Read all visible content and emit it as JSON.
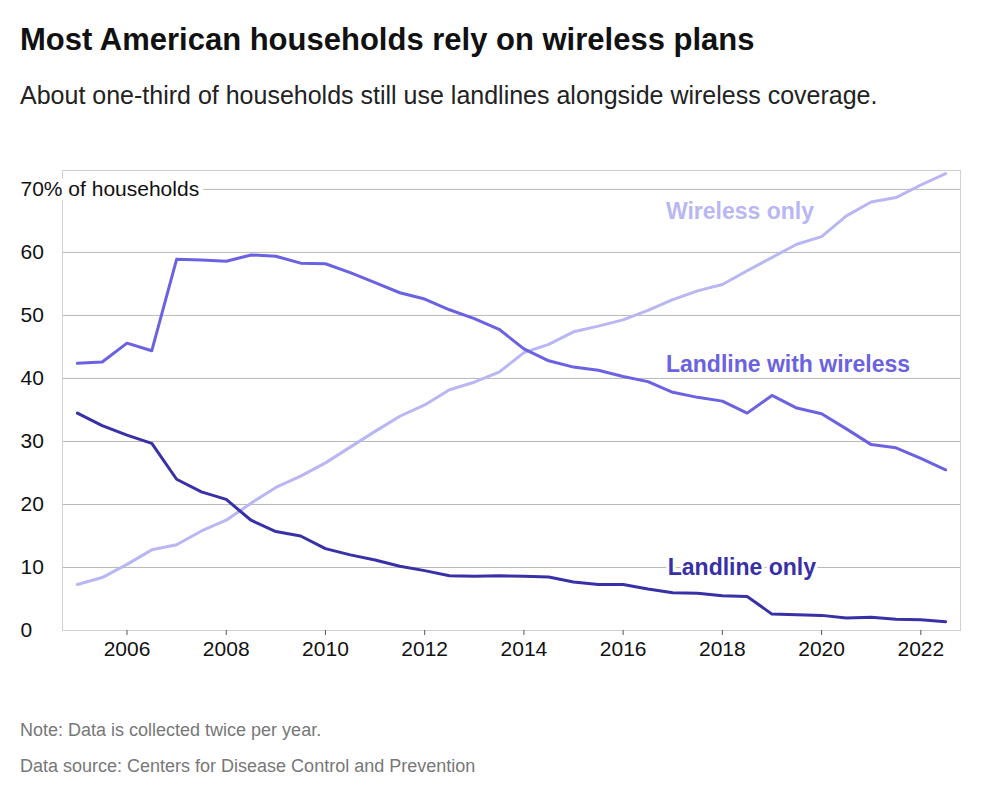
{
  "chart_data": {
    "type": "line",
    "title": "Most American households rely on wireless plans",
    "subtitle": "About one-third of households still use landlines alongside wireless coverage.",
    "note": "Note: Data is collected twice per year.",
    "source": "Data source: Centers for Disease Control and Prevention",
    "x": [
      2005,
      2005.5,
      2006,
      2006.5,
      2007,
      2007.5,
      2008,
      2008.5,
      2009,
      2009.5,
      2010,
      2010.5,
      2011,
      2011.5,
      2012,
      2012.5,
      2013,
      2013.5,
      2014,
      2014.5,
      2015,
      2015.5,
      2016,
      2016.5,
      2017,
      2017.5,
      2018,
      2018.5,
      2019,
      2019.5,
      2020,
      2020.5,
      2021,
      2021.5,
      2022,
      2022.5
    ],
    "series": [
      {
        "name": "Wireless only",
        "color": "#b9b6f4",
        "values": [
          7.3,
          8.4,
          10.5,
          12.8,
          13.6,
          15.8,
          17.5,
          20.2,
          22.7,
          24.5,
          26.6,
          29.1,
          31.6,
          34.0,
          35.8,
          38.2,
          39.4,
          41.0,
          44.1,
          45.4,
          47.4,
          48.3,
          49.3,
          50.8,
          52.5,
          53.9,
          54.9,
          57.1,
          59.2,
          61.3,
          62.5,
          65.8,
          68.0,
          68.7,
          70.7,
          72.5
        ]
      },
      {
        "name": "Landline with wireless",
        "color": "#6a62e2",
        "values": [
          42.4,
          42.6,
          45.6,
          44.4,
          58.9,
          58.8,
          58.6,
          59.6,
          59.4,
          58.3,
          58.2,
          56.8,
          55.2,
          53.6,
          52.6,
          50.9,
          49.5,
          47.8,
          44.7,
          42.8,
          41.8,
          41.3,
          40.3,
          39.5,
          37.8,
          37.0,
          36.4,
          34.5,
          37.3,
          35.3,
          34.4,
          32.0,
          29.5,
          29.0,
          27.3,
          25.5
        ]
      },
      {
        "name": "Landline only",
        "color": "#3730a6",
        "values": [
          34.5,
          32.5,
          31.0,
          29.7,
          24.0,
          22.0,
          20.8,
          17.5,
          15.7,
          15.0,
          13.0,
          12.0,
          11.2,
          10.2,
          9.5,
          8.7,
          8.6,
          8.7,
          8.6,
          8.5,
          7.7,
          7.3,
          7.3,
          6.6,
          6.0,
          5.9,
          5.5,
          5.4,
          2.6,
          2.5,
          2.4,
          2.0,
          2.1,
          1.8,
          1.7,
          1.4
        ]
      }
    ],
    "xlim": [
      2004.7,
      2022.8
    ],
    "xticks": [
      2006,
      2008,
      2010,
      2012,
      2014,
      2016,
      2018,
      2020,
      2022
    ],
    "ylim": [
      0,
      73
    ],
    "yticks": [
      0,
      10,
      20,
      30,
      40,
      50,
      60,
      {
        "value": 70,
        "label": "70% of households"
      }
    ],
    "grid": true
  }
}
